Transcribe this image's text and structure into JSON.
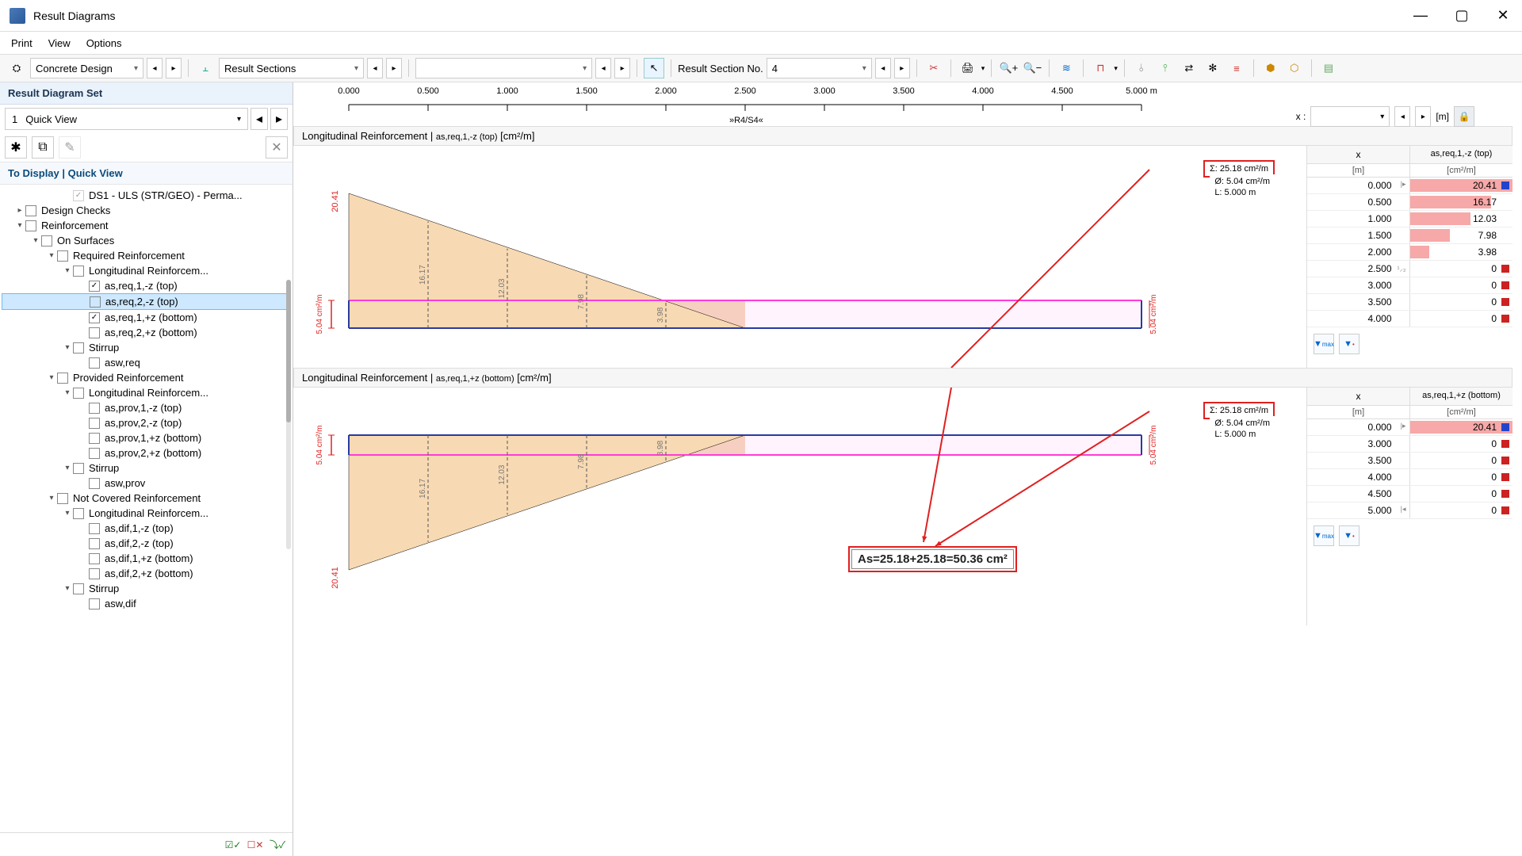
{
  "window": {
    "title": "Result Diagrams"
  },
  "menu": [
    "Print",
    "View",
    "Options"
  ],
  "toolbar": {
    "combo1_icon": "⚙",
    "combo1": "Concrete Design",
    "combo2_icon": "⫠",
    "combo2": "Result Sections",
    "section_label": "Result Section No.",
    "section_value": "4"
  },
  "sidebar": {
    "header": "Result Diagram Set",
    "combo_num": "1",
    "combo_text": "Quick View",
    "sub": "To Display | Quick View",
    "ds1": "DS1 - ULS (STR/GEO) - Perma...",
    "nodes": {
      "design_checks": "Design Checks",
      "reinforcement": "Reinforcement",
      "on_surfaces": "On Surfaces",
      "required": "Required Reinforcement",
      "long1": "Longitudinal Reinforcem...",
      "r1": "as,req,1,-z (top)",
      "r2": "as,req,2,-z (top)",
      "r3": "as,req,1,+z (bottom)",
      "r4": "as,req,2,+z (bottom)",
      "stirrup": "Stirrup",
      "aswreq": "asw,req",
      "provided": "Provided Reinforcement",
      "long2": "Longitudinal Reinforcem...",
      "p1": "as,prov,1,-z (top)",
      "p2": "as,prov,2,-z (top)",
      "p3": "as,prov,1,+z (bottom)",
      "p4": "as,prov,2,+z (bottom)",
      "stirrup2": "Stirrup",
      "aswprov": "asw,prov",
      "notcov": "Not Covered Reinforcement",
      "long3": "Longitudinal Reinforcem...",
      "d1": "as,dif,1,-z (top)",
      "d2": "as,dif,2,-z (top)",
      "d3": "as,dif,1,+z (bottom)",
      "d4": "as,dif,2,+z (bottom)",
      "stirrup3": "Stirrup",
      "aswdif": "asw,dif"
    }
  },
  "ruler": {
    "ticks": [
      "0.000",
      "0.500",
      "1.000",
      "1.500",
      "2.000",
      "2.500",
      "3.000",
      "3.500",
      "4.000",
      "4.500",
      "5.000 m"
    ],
    "label_below": "»R4/S4«",
    "x_label": "x :",
    "unit": "[m]"
  },
  "chart1": {
    "title_a": "Longitudinal Reinforcement | ",
    "title_b": "as,req,1,-z (top)",
    "title_c": " [cm²/m]",
    "legend": {
      "l1": "Σ:  25.18  cm²/m",
      "l2": "Ø:   5.04  cm²/m",
      "l3": "L:  5.000   m"
    },
    "yaxis_label": "5.04 cm²/m",
    "max_label": "20.41",
    "bar_values": [
      "16.17",
      "12.03",
      "7.98",
      "3.98"
    ],
    "colors": {
      "fill_poly": "#f7d9b3",
      "fill_base": "#f3bfa6",
      "line_pink": "#ff3bd8",
      "line_blue": "#2a3aa0",
      "red": "#e02020"
    },
    "table": {
      "h1": "x",
      "h2": "as,req,1,-z (top)",
      "u1": "[m]",
      "u2": "[cm²/m]",
      "rows": [
        {
          "x": "0.000",
          "mark": "|▸",
          "v": "20.41",
          "bar": 100,
          "sq": "#2244cc"
        },
        {
          "x": "0.500",
          "v": "16.17",
          "bar": 79,
          "sq": null
        },
        {
          "x": "1.000",
          "v": "12.03",
          "bar": 59,
          "sq": null
        },
        {
          "x": "1.500",
          "v": "7.98",
          "bar": 39,
          "sq": null
        },
        {
          "x": "2.000",
          "v": "3.98",
          "bar": 19,
          "sq": null
        },
        {
          "x": "2.500",
          "mark": "¹⸝₂",
          "v": "0",
          "bar": 0,
          "sq": "#cc2222"
        },
        {
          "x": "3.000",
          "v": "0",
          "bar": 0,
          "sq": "#cc2222"
        },
        {
          "x": "3.500",
          "v": "0",
          "bar": 0,
          "sq": "#cc2222"
        },
        {
          "x": "4.000",
          "v": "0",
          "bar": 0,
          "sq": "#cc2222"
        }
      ]
    }
  },
  "chart2": {
    "title_a": "Longitudinal Reinforcement | ",
    "title_b": "as,req,1,+z (bottom)",
    "title_c": " [cm²/m]",
    "legend": {
      "l1": "Σ:  25.18  cm²/m",
      "l2": "Ø:   5.04  cm²/m",
      "l3": "L:  5.000   m"
    },
    "yaxis_label": "5.04 cm²/m",
    "max_label": "20.41",
    "bar_values": [
      "16.17",
      "12.03",
      "7.98",
      "3.98"
    ],
    "table": {
      "h1": "x",
      "h2": "as,req,1,+z (bottom)",
      "u1": "[m]",
      "u2": "[cm²/m]",
      "rows": [
        {
          "x": "0.000",
          "mark": "|▸",
          "v": "20.41",
          "bar": 100,
          "sq": "#2244cc"
        },
        {
          "x": "3.000",
          "v": "0",
          "bar": 0,
          "sq": "#cc2222"
        },
        {
          "x": "3.500",
          "v": "0",
          "bar": 0,
          "sq": "#cc2222"
        },
        {
          "x": "4.000",
          "v": "0",
          "bar": 0,
          "sq": "#cc2222"
        },
        {
          "x": "4.500",
          "v": "0",
          "bar": 0,
          "sq": "#cc2222"
        },
        {
          "x": "5.000",
          "mark": "|◂",
          "v": "0",
          "bar": 0,
          "sq": "#cc2222"
        }
      ]
    }
  },
  "annotation": "As=25.18+25.18=50.36 cm²"
}
